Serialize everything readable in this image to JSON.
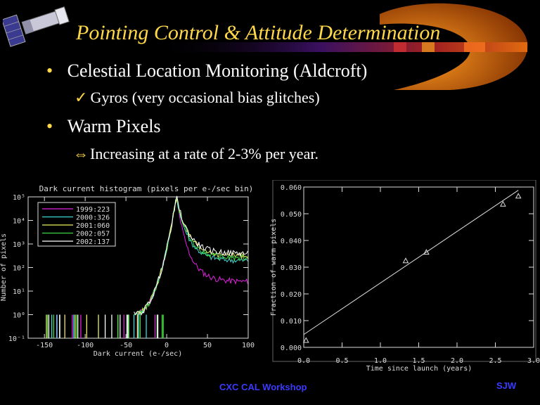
{
  "slide": {
    "title": "Pointing Control & Attitude Determination",
    "bullets": [
      {
        "bullet": "•",
        "text": "Celestial Location Monitoring (Aldcroft)",
        "sub_marker": "✓",
        "sub": "Gyros (very occasional bias glitches)"
      },
      {
        "bullet": "•",
        "text": "Warm Pixels",
        "sub_marker": "⇔",
        "sub": "Increasing at a rate of 2-3% per year."
      }
    ],
    "footer": "CXC CAL Workshop",
    "author": "SJW"
  },
  "colors": {
    "title": "#ffd84a",
    "footer": "#3a3aff",
    "banner": "#cc5500"
  },
  "chart_data": [
    {
      "type": "line",
      "title": "Dark current histogram (pixels per e-/sec bin)",
      "xlabel": "Dark current (e-/sec)",
      "ylabel": "Number of pixels",
      "xlim": [
        -170,
        100
      ],
      "ylim_log10": [
        -1,
        5
      ],
      "xticks": [
        "-150",
        "-100",
        "-50",
        "0",
        "50",
        "100"
      ],
      "yticks": [
        "10⁻¹",
        "10⁰",
        "10¹",
        "10²",
        "10³",
        "10⁴",
        "10⁵"
      ],
      "legend_position": "top-left",
      "series": [
        {
          "name": "1999:223",
          "color": "#e020e0",
          "tail_log10": 1.4
        },
        {
          "name": "2000:326",
          "color": "#40d8d8",
          "tail_log10": 2.3
        },
        {
          "name": "2001:060",
          "color": "#f0f060",
          "tail_log10": 2.5
        },
        {
          "name": "2002:057",
          "color": "#40d840",
          "tail_log10": 2.4
        },
        {
          "name": "2002:137",
          "color": "#ffffff",
          "tail_log10": 2.6
        }
      ],
      "peak": {
        "x": 12,
        "log10_count": 5
      }
    },
    {
      "type": "scatter",
      "xlabel": "Time since launch (years)",
      "ylabel": "Fraction of warm pixels",
      "xlim": [
        0,
        3.0
      ],
      "ylim": [
        0,
        0.06
      ],
      "xticks": [
        "0.0",
        "0.5",
        "1.0",
        "1.5",
        "2.0",
        "2.5",
        "3.0"
      ],
      "yticks": [
        "0.000",
        "0.010",
        "0.020",
        "0.030",
        "0.040",
        "0.050",
        "0.060"
      ],
      "points": [
        {
          "x": 0.03,
          "y": 0.0025
        },
        {
          "x": 1.33,
          "y": 0.0323
        },
        {
          "x": 1.6,
          "y": 0.0355
        },
        {
          "x": 2.6,
          "y": 0.0535
        },
        {
          "x": 2.8,
          "y": 0.0565
        }
      ],
      "fit": {
        "x": [
          0.0,
          2.8
        ],
        "y": [
          0.0048,
          0.0588
        ]
      }
    }
  ]
}
